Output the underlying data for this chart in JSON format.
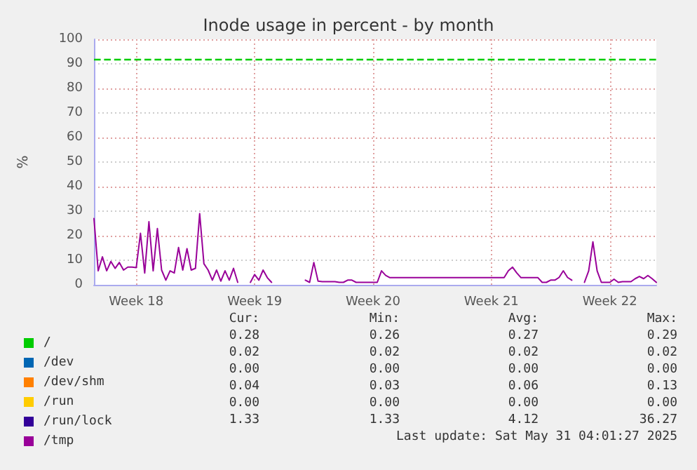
{
  "chart_data": {
    "type": "line",
    "title": "Inode usage in percent - by month",
    "ylabel": "%",
    "categories": [
      null,
      null,
      null,
      null,
      null,
      null,
      null,
      null,
      null,
      null,
      "Week 18",
      null,
      null,
      null,
      null,
      null,
      null,
      null,
      null,
      null,
      null,
      null,
      null,
      null,
      null,
      null,
      null,
      null,
      null,
      null,
      null,
      null,
      null,
      null,
      null,
      null,
      null,
      null,
      "Week 19",
      null,
      null,
      null,
      null,
      null,
      null,
      null,
      null,
      null,
      null,
      null,
      null,
      null,
      null,
      null,
      null,
      null,
      null,
      null,
      null,
      null,
      null,
      null,
      null,
      null,
      null,
      null,
      "Week 20",
      null,
      null,
      null,
      null,
      null,
      null,
      null,
      null,
      null,
      null,
      null,
      null,
      null,
      null,
      null,
      null,
      null,
      null,
      null,
      null,
      null,
      null,
      null,
      null,
      null,
      null,
      null,
      "Week 21",
      null,
      null,
      null,
      null,
      null,
      null,
      null,
      null,
      null,
      null,
      null,
      null,
      null,
      null,
      null,
      null,
      null,
      null,
      null,
      null,
      null,
      null,
      null,
      null,
      null,
      null,
      null,
      "Week 22",
      null,
      null,
      null,
      null,
      null,
      null,
      null,
      null,
      null,
      null,
      null
    ],
    "ylim": [
      0,
      100
    ],
    "yticks": [
      0,
      10,
      20,
      30,
      40,
      50,
      60,
      70,
      80,
      90,
      100
    ],
    "grid": true,
    "legend": "bottom left",
    "marker": "none",
    "line_style": "solid",
    "ref_lines": [
      {
        "axis": "y",
        "value": 92,
        "color": "#00cc00",
        "line_style": "dashed"
      }
    ],
    "series": [
      {
        "name": "/",
        "color": "#00cc00",
        "values": [
          null,
          null,
          null,
          null,
          null,
          null,
          null,
          null,
          null,
          null,
          null,
          null,
          null,
          null,
          null,
          null,
          null,
          null,
          null,
          null,
          null,
          null,
          null,
          null,
          null,
          null,
          null,
          null,
          null,
          null,
          null,
          null,
          null,
          null,
          null,
          null,
          null,
          null,
          null,
          null,
          null,
          null,
          null,
          null,
          null,
          null,
          null,
          null,
          null,
          null,
          null,
          null,
          null,
          null,
          null,
          null,
          null,
          null,
          null,
          null,
          null,
          null,
          null,
          null,
          null,
          null,
          null,
          null,
          null,
          null,
          null,
          null,
          null,
          null,
          null,
          null,
          null,
          null,
          null,
          null,
          null,
          null,
          null,
          null,
          null,
          null,
          null,
          null,
          null,
          null,
          null,
          null,
          null,
          null,
          null,
          null,
          null,
          null,
          null,
          null,
          null,
          null,
          null,
          null,
          null,
          null,
          null,
          null,
          null,
          null,
          null,
          null,
          null,
          null,
          null,
          null,
          null,
          null,
          null,
          null,
          null,
          null,
          null,
          null,
          null,
          null,
          null,
          null,
          null,
          null,
          null,
          null,
          null,
          null
        ]
      },
      {
        "name": "/dev",
        "color": "#0066b3",
        "values": [
          null,
          null,
          null,
          null,
          null,
          null,
          null,
          null,
          null,
          null,
          null,
          null,
          null,
          null,
          null,
          null,
          null,
          null,
          null,
          null,
          null,
          null,
          null,
          null,
          null,
          null,
          null,
          null,
          null,
          null,
          null,
          null,
          null,
          null,
          null,
          null,
          null,
          null,
          null,
          null,
          null,
          null,
          null,
          null,
          null,
          null,
          null,
          null,
          null,
          null,
          null,
          null,
          null,
          null,
          null,
          null,
          null,
          null,
          null,
          null,
          null,
          null,
          null,
          null,
          null,
          null,
          null,
          null,
          null,
          null,
          null,
          null,
          null,
          null,
          null,
          null,
          null,
          null,
          null,
          null,
          null,
          null,
          null,
          null,
          null,
          null,
          null,
          null,
          null,
          null,
          null,
          null,
          null,
          null,
          null,
          null,
          null,
          null,
          null,
          null,
          null,
          null,
          null,
          null,
          null,
          null,
          null,
          null,
          null,
          null,
          null,
          null,
          null,
          null,
          null,
          null,
          null,
          null,
          null,
          null,
          null,
          null,
          null,
          null,
          null,
          null,
          null,
          null,
          null,
          null,
          null,
          null,
          null,
          null
        ]
      },
      {
        "name": "/dev/shm",
        "color": "#ff8000",
        "values": [
          null,
          null,
          null,
          null,
          null,
          null,
          null,
          null,
          null,
          null,
          null,
          null,
          null,
          null,
          null,
          null,
          null,
          null,
          null,
          null,
          null,
          null,
          null,
          null,
          null,
          null,
          null,
          null,
          null,
          null,
          null,
          null,
          null,
          null,
          null,
          null,
          null,
          null,
          null,
          null,
          null,
          null,
          null,
          null,
          null,
          null,
          null,
          null,
          null,
          null,
          null,
          null,
          null,
          null,
          null,
          null,
          null,
          null,
          null,
          null,
          null,
          null,
          null,
          null,
          null,
          null,
          null,
          null,
          null,
          null,
          null,
          null,
          null,
          null,
          null,
          null,
          null,
          null,
          null,
          null,
          null,
          null,
          null,
          null,
          null,
          null,
          null,
          null,
          null,
          null,
          null,
          null,
          null,
          null,
          null,
          null,
          null,
          null,
          null,
          null,
          null,
          null,
          null,
          null,
          null,
          null,
          null,
          null,
          null,
          null,
          null,
          null,
          null,
          null,
          null,
          null,
          null,
          null,
          null,
          null,
          null,
          null,
          null,
          null,
          null,
          null,
          null,
          null,
          null,
          null,
          null,
          null,
          null,
          null
        ]
      },
      {
        "name": "/run",
        "color": "#ffcc00",
        "values": [
          null,
          null,
          null,
          null,
          null,
          null,
          null,
          null,
          null,
          null,
          null,
          null,
          null,
          null,
          null,
          null,
          null,
          null,
          null,
          null,
          null,
          null,
          null,
          null,
          null,
          null,
          null,
          null,
          null,
          null,
          null,
          null,
          null,
          null,
          null,
          null,
          null,
          null,
          null,
          null,
          null,
          null,
          null,
          null,
          null,
          null,
          null,
          null,
          null,
          null,
          null,
          null,
          null,
          null,
          null,
          null,
          null,
          null,
          null,
          null,
          null,
          null,
          null,
          null,
          null,
          null,
          null,
          null,
          null,
          null,
          null,
          null,
          null,
          null,
          null,
          null,
          null,
          null,
          null,
          null,
          null,
          null,
          null,
          null,
          null,
          null,
          null,
          null,
          null,
          null,
          null,
          null,
          null,
          null,
          null,
          null,
          null,
          null,
          null,
          null,
          null,
          null,
          null,
          null,
          null,
          null,
          null,
          null,
          null,
          null,
          null,
          null,
          null,
          null,
          null,
          null,
          null,
          null,
          null,
          null,
          null,
          null,
          null,
          null,
          null,
          null,
          null,
          null,
          null,
          null,
          null,
          null,
          null,
          null
        ]
      },
      {
        "name": "/run/lock",
        "color": "#330099",
        "values": [
          null,
          null,
          null,
          null,
          null,
          null,
          null,
          null,
          null,
          null,
          null,
          null,
          null,
          null,
          null,
          null,
          null,
          null,
          null,
          null,
          null,
          null,
          null,
          null,
          null,
          null,
          null,
          null,
          null,
          null,
          null,
          null,
          null,
          null,
          null,
          null,
          null,
          null,
          null,
          null,
          null,
          null,
          null,
          null,
          null,
          null,
          null,
          null,
          null,
          null,
          null,
          null,
          null,
          null,
          null,
          null,
          null,
          null,
          null,
          null,
          null,
          null,
          null,
          null,
          null,
          null,
          null,
          null,
          null,
          null,
          null,
          null,
          null,
          null,
          null,
          null,
          null,
          null,
          null,
          null,
          null,
          null,
          null,
          null,
          null,
          null,
          null,
          null,
          null,
          null,
          null,
          null,
          null,
          null,
          null,
          null,
          null,
          null,
          null,
          null,
          null,
          null,
          null,
          null,
          null,
          null,
          null,
          null,
          null,
          null,
          null,
          null,
          null,
          null,
          null,
          null,
          null,
          null,
          null,
          null,
          null,
          null,
          null,
          null,
          null,
          null,
          null,
          null,
          null,
          null,
          null,
          null,
          null,
          null
        ]
      },
      {
        "name": "/tmp",
        "color": "#990099",
        "values": [
          27,
          5.7,
          11.4,
          5.7,
          9.5,
          6.7,
          9.1,
          6,
          7.2,
          7.2,
          7,
          21,
          4.8,
          25.7,
          5.7,
          22.9,
          6,
          1.9,
          5.7,
          4.8,
          15.2,
          6,
          14.7,
          6,
          6.7,
          29,
          8.6,
          6,
          1.9,
          6,
          1.5,
          5.7,
          1.9,
          6.7,
          1,
          null,
          null,
          1,
          4.2,
          1.9,
          6,
          2.9,
          1,
          null,
          null,
          null,
          null,
          null,
          null,
          null,
          1.9,
          1,
          9.1,
          1.5,
          1.3,
          1.3,
          1.3,
          1.3,
          1,
          1,
          1.9,
          1.9,
          1,
          1,
          1,
          1,
          1,
          1,
          5.7,
          3.8,
          2.9,
          2.9,
          2.9,
          2.9,
          2.9,
          2.9,
          2.9,
          2.9,
          2.9,
          2.9,
          2.9,
          2.9,
          2.9,
          2.9,
          2.9,
          2.9,
          2.9,
          2.9,
          2.9,
          2.9,
          2.9,
          2.9,
          2.9,
          2.9,
          2.9,
          2.9,
          2.9,
          2.9,
          5.7,
          7.2,
          4.8,
          2.9,
          2.9,
          2.9,
          2.9,
          2.9,
          1,
          1,
          1.9,
          1.9,
          3,
          5.7,
          3,
          1.9,
          null,
          null,
          1,
          5.7,
          17.5,
          5.7,
          1,
          1,
          1,
          2.3,
          1,
          1.3,
          1.3,
          1.3,
          2.5,
          3.4,
          2.5,
          3.8,
          2.5,
          1
        ]
      }
    ],
    "annotations": [
      "Cur:",
      "Min:",
      "Avg:",
      "Max:",
      "0.28",
      "0.26",
      "0.27",
      "0.29",
      "0.02",
      "0.02",
      "0.02",
      "0.02",
      "0.00",
      "0.00",
      "0.00",
      "0.00",
      "0.04",
      "0.03",
      "0.06",
      "0.13",
      "0.00",
      "0.00",
      "0.00",
      "0.00",
      "1.33",
      "1.33",
      "4.12",
      "36.27",
      "Last update: Sat May 31 04:01:27 2025"
    ]
  }
}
